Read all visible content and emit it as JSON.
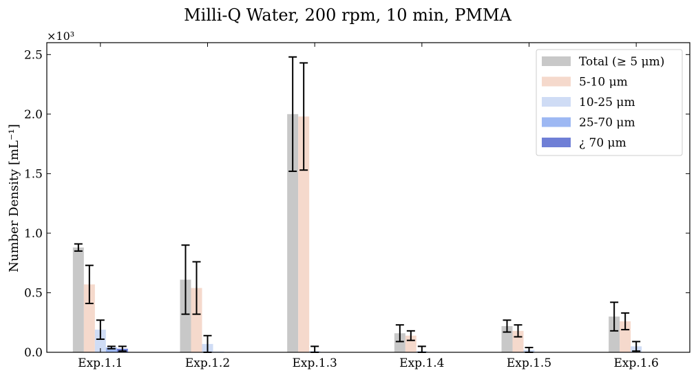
{
  "chart_data": {
    "type": "bar",
    "title": "Milli-Q Water, 200 rpm, 10 min, PMMA",
    "ylabel": "Number Density [mL⁻¹]",
    "xlabel": "",
    "y_multiplier_label": "×10³",
    "ylim": [
      0,
      2.6
    ],
    "yticks": [
      0.0,
      0.5,
      1.0,
      1.5,
      2.0,
      2.5
    ],
    "ytick_labels": [
      "0.0",
      "0.5",
      "1.0",
      "1.5",
      "2.0",
      "2.5"
    ],
    "categories": [
      "Exp.1.1",
      "Exp.1.2",
      "Exp.1.3",
      "Exp.1.4",
      "Exp.1.5",
      "Exp.1.6"
    ],
    "legend_position": "top-right",
    "series": [
      {
        "name": "Total (≥ 5 μm)",
        "color": "#c8c8c8",
        "values": [
          0.88,
          0.61,
          2.0,
          0.16,
          0.22,
          0.3
        ],
        "errors": [
          0.03,
          0.29,
          0.48,
          0.07,
          0.05,
          0.12
        ]
      },
      {
        "name": "5-10 μm",
        "color": "#f5d9cc",
        "values": [
          0.57,
          0.54,
          1.98,
          0.14,
          0.18,
          0.26
        ],
        "errors": [
          0.16,
          0.22,
          0.45,
          0.04,
          0.05,
          0.07
        ]
      },
      {
        "name": "10-25 μm",
        "color": "#cfdcf5",
        "values": [
          0.19,
          0.07,
          0.01,
          0.01,
          0.02,
          0.05
        ],
        "errors": [
          0.08,
          0.07,
          0.04,
          0.04,
          0.02,
          0.04
        ]
      },
      {
        "name": "25-70 μm",
        "color": "#9db8f3",
        "values": [
          0.04,
          0.005,
          0.003,
          0.003,
          0.003,
          0.003
        ],
        "errors": [
          0.01,
          0.0,
          0.0,
          0.0,
          0.0,
          0.0
        ]
      },
      {
        "name": "¿ 70 μm",
        "color": "#6f7fd6",
        "values": [
          0.03,
          0.003,
          0.002,
          0.002,
          0.002,
          0.002
        ],
        "errors": [
          0.02,
          0.0,
          0.0,
          0.0,
          0.0,
          0.0
        ]
      }
    ]
  }
}
